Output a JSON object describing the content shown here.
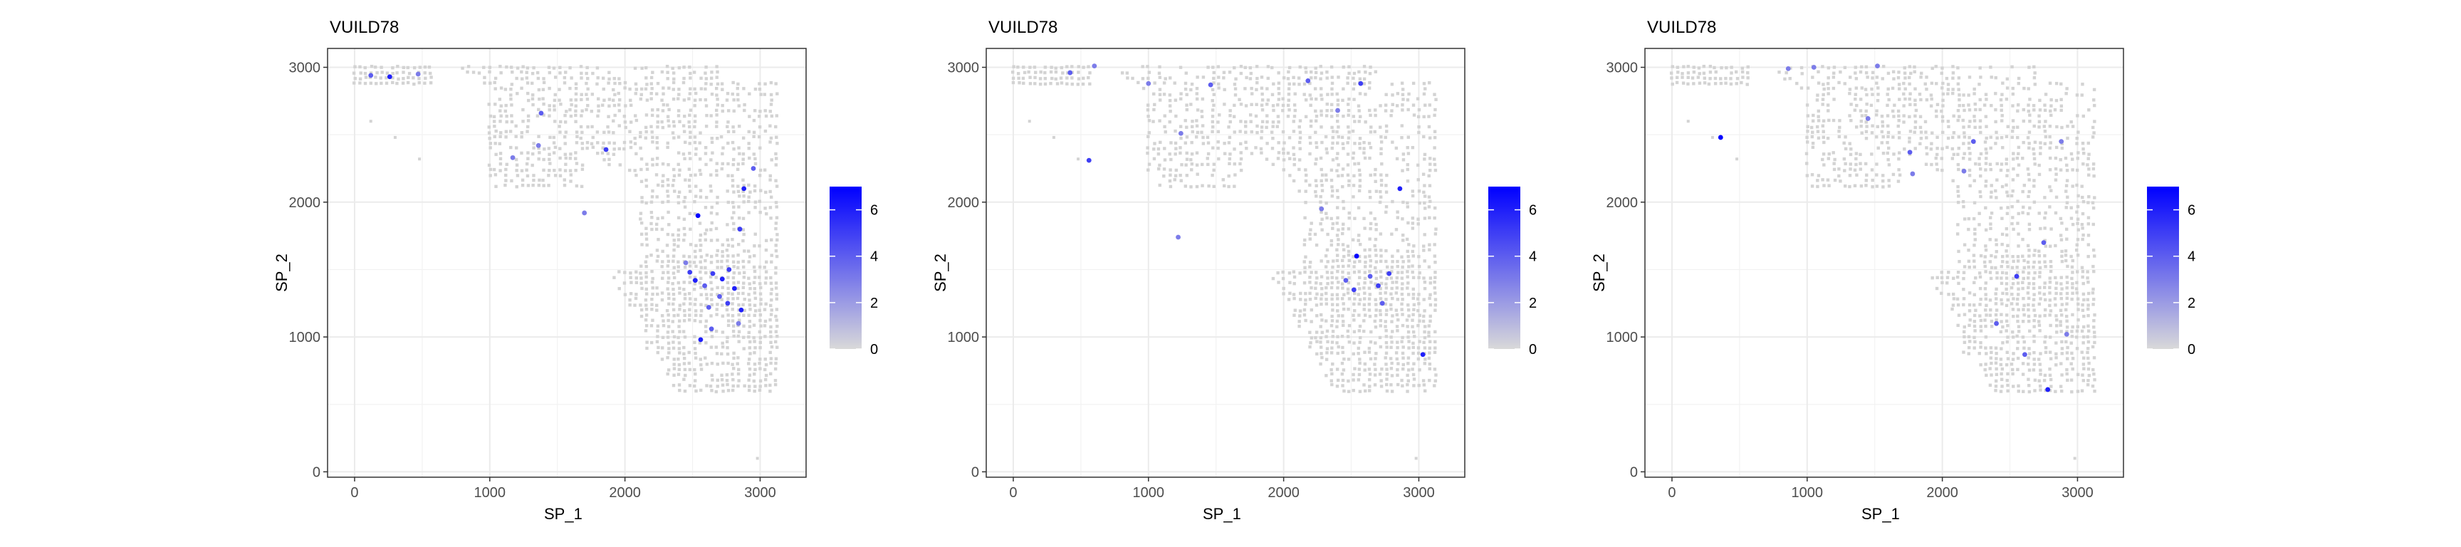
{
  "chart_data": [
    {
      "type": "scatter",
      "title": "VUILD78",
      "xlabel": "SP_1",
      "ylabel": "SP_2",
      "xlim": [
        -200,
        3340
      ],
      "ylim": [
        -40,
        3140
      ],
      "x_ticks": [
        0,
        1000,
        2000,
        3000
      ],
      "y_ticks": [
        0,
        1000,
        2000,
        3000
      ],
      "grid": true,
      "legend": {
        "position": "right",
        "type": "colorbar",
        "range": [
          0,
          7
        ],
        "ticks": [
          0,
          2,
          4,
          6
        ],
        "low_color": "#d9d9d9",
        "high_color": "#0000ff"
      },
      "highlight_points": [
        {
          "x": 120,
          "y": 2940,
          "v": 4
        },
        {
          "x": 260,
          "y": 2930,
          "v": 6
        },
        {
          "x": 470,
          "y": 2950,
          "v": 3
        },
        {
          "x": 1380,
          "y": 2660,
          "v": 4
        },
        {
          "x": 1360,
          "y": 2420,
          "v": 3
        },
        {
          "x": 1860,
          "y": 2390,
          "v": 5
        },
        {
          "x": 1170,
          "y": 2330,
          "v": 3
        },
        {
          "x": 2540,
          "y": 1900,
          "v": 7
        },
        {
          "x": 2880,
          "y": 2100,
          "v": 6
        },
        {
          "x": 2850,
          "y": 1800,
          "v": 5
        },
        {
          "x": 1700,
          "y": 1920,
          "v": 3
        },
        {
          "x": 2480,
          "y": 1480,
          "v": 5
        },
        {
          "x": 2520,
          "y": 1420,
          "v": 6
        },
        {
          "x": 2590,
          "y": 1380,
          "v": 4
        },
        {
          "x": 2650,
          "y": 1470,
          "v": 5
        },
        {
          "x": 2720,
          "y": 1430,
          "v": 6
        },
        {
          "x": 2770,
          "y": 1500,
          "v": 5
        },
        {
          "x": 2810,
          "y": 1360,
          "v": 6
        },
        {
          "x": 2700,
          "y": 1300,
          "v": 4
        },
        {
          "x": 2760,
          "y": 1250,
          "v": 5
        },
        {
          "x": 2620,
          "y": 1220,
          "v": 4
        },
        {
          "x": 2860,
          "y": 1200,
          "v": 6
        },
        {
          "x": 2840,
          "y": 1100,
          "v": 3
        },
        {
          "x": 2560,
          "y": 980,
          "v": 6
        },
        {
          "x": 2640,
          "y": 1060,
          "v": 4
        },
        {
          "x": 2450,
          "y": 1550,
          "v": 3
        },
        {
          "x": 2950,
          "y": 2250,
          "v": 4
        }
      ]
    },
    {
      "type": "scatter",
      "title": "VUILD78",
      "xlabel": "SP_1",
      "ylabel": "SP_2",
      "xlim": [
        -200,
        3340
      ],
      "ylim": [
        -40,
        3140
      ],
      "x_ticks": [
        0,
        1000,
        2000,
        3000
      ],
      "y_ticks": [
        0,
        1000,
        2000,
        3000
      ],
      "grid": true,
      "legend": {
        "position": "right",
        "type": "colorbar",
        "range": [
          0,
          7
        ],
        "ticks": [
          0,
          2,
          4,
          6
        ],
        "low_color": "#d9d9d9",
        "high_color": "#0000ff"
      },
      "highlight_points": [
        {
          "x": 420,
          "y": 2960,
          "v": 4
        },
        {
          "x": 600,
          "y": 3010,
          "v": 3
        },
        {
          "x": 560,
          "y": 2310,
          "v": 5
        },
        {
          "x": 1000,
          "y": 2880,
          "v": 3
        },
        {
          "x": 1240,
          "y": 2510,
          "v": 3
        },
        {
          "x": 1460,
          "y": 2870,
          "v": 4
        },
        {
          "x": 2180,
          "y": 2900,
          "v": 4
        },
        {
          "x": 2570,
          "y": 2880,
          "v": 5
        },
        {
          "x": 2400,
          "y": 2680,
          "v": 3
        },
        {
          "x": 2860,
          "y": 2100,
          "v": 6
        },
        {
          "x": 2540,
          "y": 1600,
          "v": 7
        },
        {
          "x": 2460,
          "y": 1420,
          "v": 4
        },
        {
          "x": 2520,
          "y": 1350,
          "v": 5
        },
        {
          "x": 2640,
          "y": 1450,
          "v": 4
        },
        {
          "x": 2700,
          "y": 1380,
          "v": 5
        },
        {
          "x": 2730,
          "y": 1250,
          "v": 4
        },
        {
          "x": 2780,
          "y": 1470,
          "v": 5
        },
        {
          "x": 3030,
          "y": 870,
          "v": 6
        },
        {
          "x": 2280,
          "y": 1950,
          "v": 3
        },
        {
          "x": 1220,
          "y": 1740,
          "v": 3
        }
      ]
    },
    {
      "type": "scatter",
      "title": "VUILD78",
      "xlabel": "SP_1",
      "ylabel": "SP_2",
      "xlim": [
        -200,
        3340
      ],
      "ylim": [
        -40,
        3140
      ],
      "x_ticks": [
        0,
        1000,
        2000,
        3000
      ],
      "y_ticks": [
        0,
        1000,
        2000,
        3000
      ],
      "grid": true,
      "legend": {
        "position": "right",
        "type": "colorbar",
        "range": [
          0,
          7
        ],
        "ticks": [
          0,
          2,
          4,
          6
        ],
        "low_color": "#d9d9d9",
        "high_color": "#0000ff"
      },
      "highlight_points": [
        {
          "x": 360,
          "y": 2480,
          "v": 7
        },
        {
          "x": 860,
          "y": 2990,
          "v": 3
        },
        {
          "x": 1050,
          "y": 3000,
          "v": 3
        },
        {
          "x": 1520,
          "y": 3010,
          "v": 3
        },
        {
          "x": 1760,
          "y": 2370,
          "v": 4
        },
        {
          "x": 1780,
          "y": 2210,
          "v": 3
        },
        {
          "x": 2160,
          "y": 2230,
          "v": 3
        },
        {
          "x": 2230,
          "y": 2450,
          "v": 4
        },
        {
          "x": 2880,
          "y": 2450,
          "v": 3
        },
        {
          "x": 2750,
          "y": 1700,
          "v": 4
        },
        {
          "x": 2550,
          "y": 1450,
          "v": 5
        },
        {
          "x": 2400,
          "y": 1100,
          "v": 4
        },
        {
          "x": 2610,
          "y": 870,
          "v": 4
        },
        {
          "x": 2780,
          "y": 610,
          "v": 6
        },
        {
          "x": 2920,
          "y": 1020,
          "v": 3
        },
        {
          "x": 1450,
          "y": 2620,
          "v": 3
        }
      ]
    }
  ]
}
